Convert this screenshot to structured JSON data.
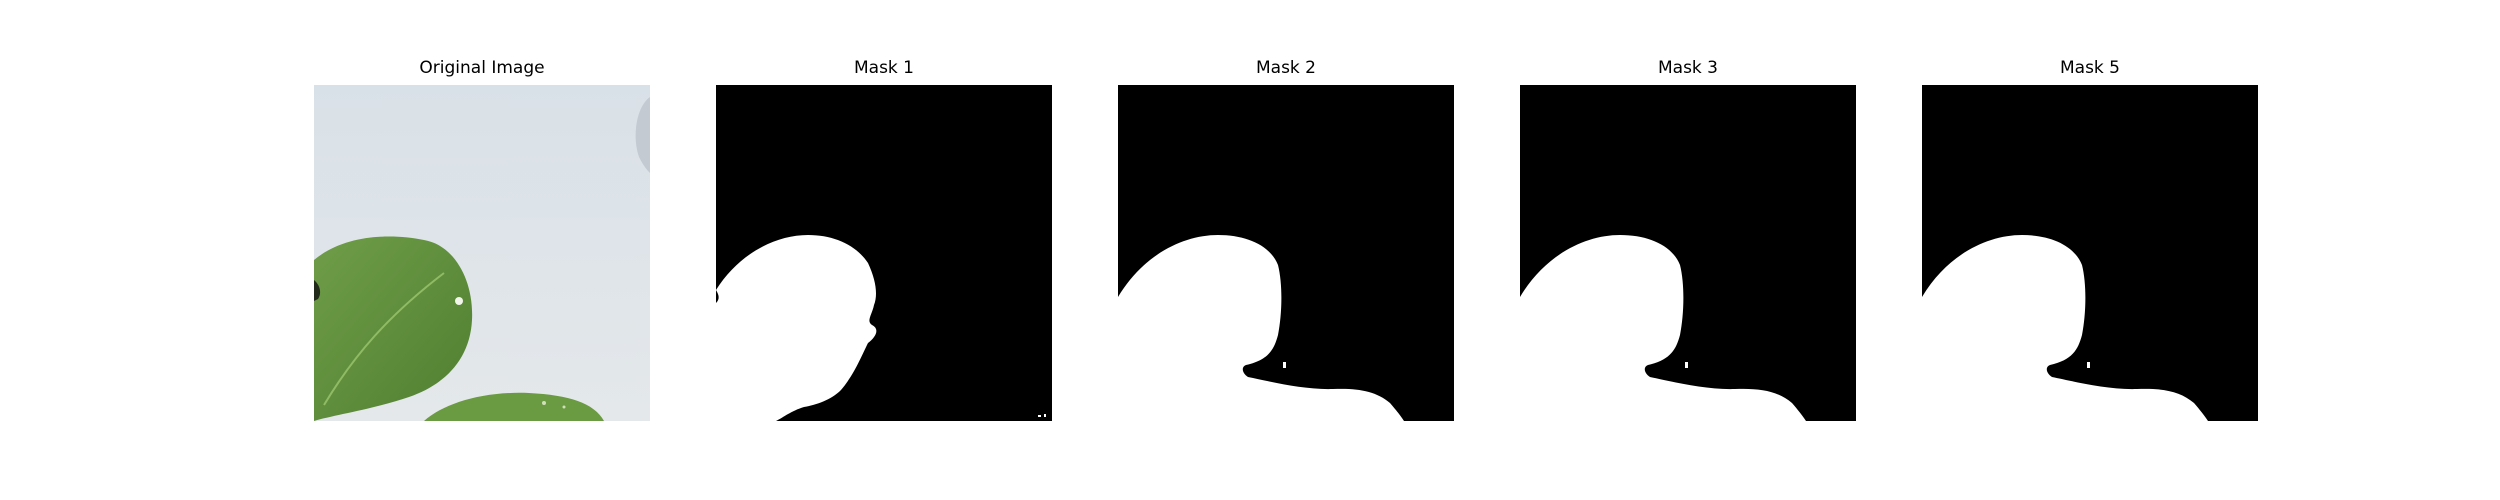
{
  "figure": {
    "panels": [
      {
        "title": "Original Image",
        "kind": "photo"
      },
      {
        "title": "Mask 1",
        "kind": "mask",
        "variant": "mask-a"
      },
      {
        "title": "Mask 2",
        "kind": "mask",
        "variant": "mask-b"
      },
      {
        "title": "Mask 3",
        "kind": "mask",
        "variant": "mask-b"
      },
      {
        "title": "Mask 5",
        "kind": "mask",
        "variant": "mask-b"
      }
    ]
  },
  "colors": {
    "mask_background": "#000000",
    "mask_foreground": "#ffffff",
    "photo_background": "#dfe5ea",
    "leaf": "#5f8f3c",
    "leaf_dark": "#3e6a27",
    "leaf_highlight": "#86b35c"
  }
}
